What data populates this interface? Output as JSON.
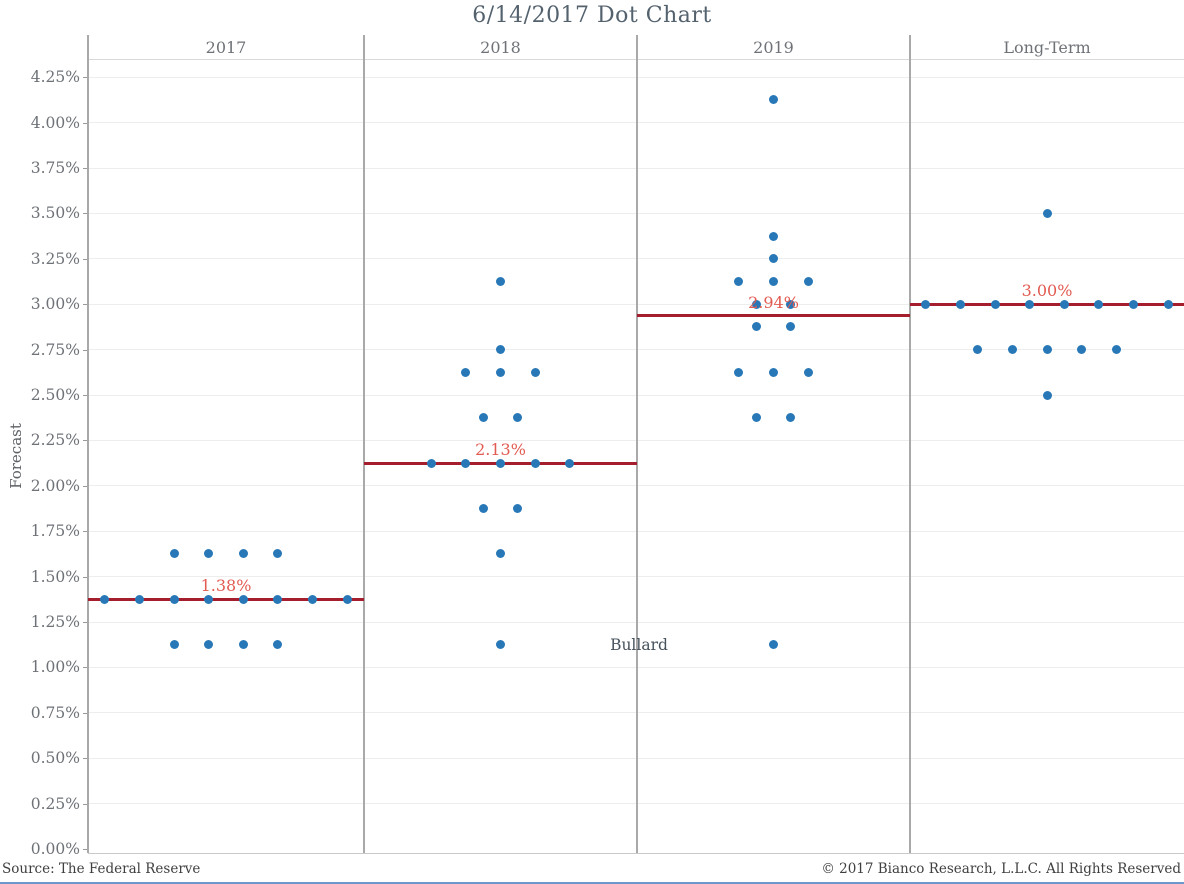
{
  "title": "6/14/2017 Dot Chart",
  "footer": {
    "left": "Source: The Federal Reserve",
    "right": "© 2017 Bianco Research, L.L.C. All Rights Reserved"
  },
  "colors": {
    "dot": "#2878b8",
    "median_line": "#a51e2e",
    "median_label": "#e25b52",
    "accent_bar": "#6d96cd"
  },
  "chart_data": {
    "type": "scatter",
    "title": "6/14/2017 Dot Chart",
    "ylabel": "Forecast",
    "ylim": [
      0,
      4.25
    ],
    "grid": true,
    "yticks": [
      {
        "value": 0.0,
        "label": "0.00%"
      },
      {
        "value": 0.25,
        "label": "0.25%"
      },
      {
        "value": 0.5,
        "label": "0.50%"
      },
      {
        "value": 0.75,
        "label": "0.75%"
      },
      {
        "value": 1.0,
        "label": "1.00%"
      },
      {
        "value": 1.25,
        "label": "1.25%"
      },
      {
        "value": 1.5,
        "label": "1.50%"
      },
      {
        "value": 1.75,
        "label": "1.75%"
      },
      {
        "value": 2.0,
        "label": "2.00%"
      },
      {
        "value": 2.25,
        "label": "2.25%"
      },
      {
        "value": 2.5,
        "label": "2.50%"
      },
      {
        "value": 2.75,
        "label": "2.75%"
      },
      {
        "value": 3.0,
        "label": "3.00%"
      },
      {
        "value": 3.25,
        "label": "3.25%"
      },
      {
        "value": 3.5,
        "label": "3.50%"
      },
      {
        "value": 3.75,
        "label": "3.75%"
      },
      {
        "value": 4.0,
        "label": "4.00%"
      },
      {
        "value": 4.25,
        "label": "4.25%"
      }
    ],
    "panels": [
      {
        "label": "2017",
        "median_value": 1.375,
        "median_label": "1.38%",
        "dots": [
          {
            "value": 1.625,
            "count": 4
          },
          {
            "value": 1.375,
            "count": 8
          },
          {
            "value": 1.125,
            "count": 4
          }
        ]
      },
      {
        "label": "2018",
        "median_value": 2.125,
        "median_label": "2.13%",
        "dots": [
          {
            "value": 3.125,
            "count": 1
          },
          {
            "value": 2.75,
            "count": 1
          },
          {
            "value": 2.625,
            "count": 3
          },
          {
            "value": 2.375,
            "count": 2
          },
          {
            "value": 2.125,
            "count": 5
          },
          {
            "value": 1.875,
            "count": 2
          },
          {
            "value": 1.625,
            "count": 1
          },
          {
            "value": 1.125,
            "count": 1
          }
        ]
      },
      {
        "label": "2019",
        "median_value": 2.9375,
        "median_label": "2.94%",
        "dots": [
          {
            "value": 4.125,
            "count": 1
          },
          {
            "value": 3.375,
            "count": 1
          },
          {
            "value": 3.25,
            "count": 1
          },
          {
            "value": 3.125,
            "count": 3
          },
          {
            "value": 3.0,
            "count": 2
          },
          {
            "value": 2.875,
            "count": 2
          },
          {
            "value": 2.625,
            "count": 3
          },
          {
            "value": 2.375,
            "count": 2
          },
          {
            "value": 1.125,
            "count": 1
          }
        ]
      },
      {
        "label": "Long-Term",
        "median_value": 3.0,
        "median_label": "3.00%",
        "dots": [
          {
            "value": 3.5,
            "count": 1
          },
          {
            "value": 3.0,
            "count": 8
          },
          {
            "value": 2.75,
            "count": 5
          },
          {
            "value": 2.5,
            "count": 1
          }
        ]
      }
    ],
    "annotation": {
      "text": "Bullard",
      "value": 1.125
    }
  }
}
